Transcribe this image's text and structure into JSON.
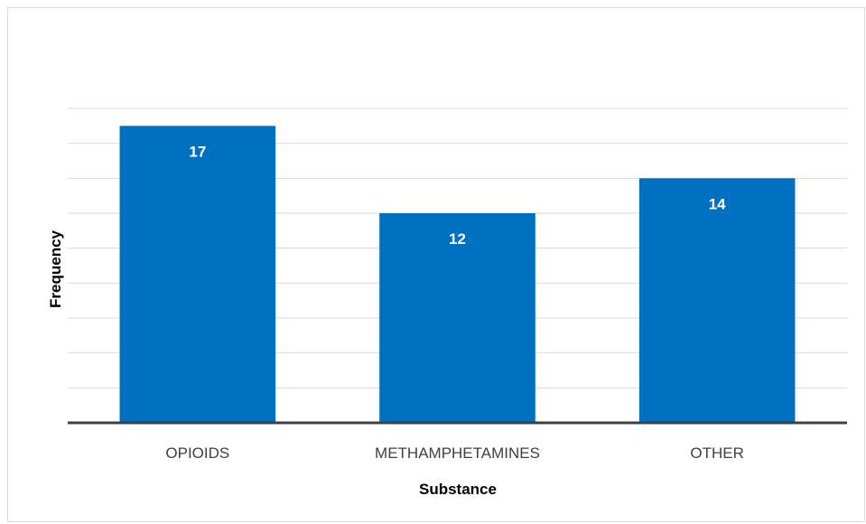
{
  "chart_data": {
    "type": "bar",
    "title": "",
    "xlabel": "Substance",
    "ylabel": "Frequency",
    "categories": [
      "OPIOIDS",
      "METHAMPHETAMINES",
      "OTHER"
    ],
    "values": [
      17,
      12,
      14
    ],
    "data_labels": [
      "17",
      "12",
      "14"
    ],
    "ylim": [
      0,
      18
    ],
    "y_gridline_step": 2,
    "grid": true,
    "legend": "none",
    "colors": {
      "bar": "#0070c0",
      "gridline": "#d9d9d9",
      "baseline": "#404040",
      "frame": "#d9d9d9"
    }
  }
}
